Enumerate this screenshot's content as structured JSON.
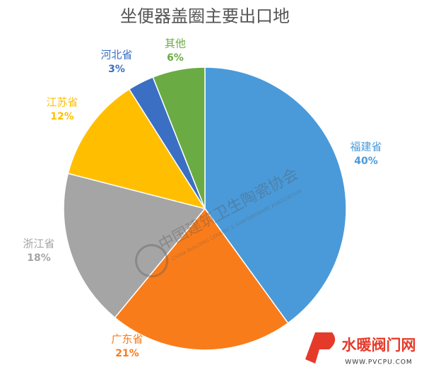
{
  "chart_data": {
    "type": "pie",
    "title": "坐便器盖圈主要出口地",
    "categories": [
      "福建省",
      "广东省",
      "浙江省",
      "江苏省",
      "河北省",
      "其他"
    ],
    "values": [
      40,
      21,
      18,
      12,
      3,
      6
    ],
    "value_labels": [
      "40%",
      "21%",
      "18%",
      "12%",
      "3%",
      "6%"
    ],
    "colors": [
      "#4a9ad9",
      "#f97c1a",
      "#a5a5a5",
      "#ffbf00",
      "#3a6fc4",
      "#6aab43"
    ]
  },
  "watermark": {
    "name": "中国建筑卫生陶瓷协会",
    "name_en": "CHINA BUILDING CERAMIC & SANITARYWARE ASSOCIATION",
    "site_name": "水暖阀门网",
    "site_url": "WWW.PVCPU.COM"
  }
}
